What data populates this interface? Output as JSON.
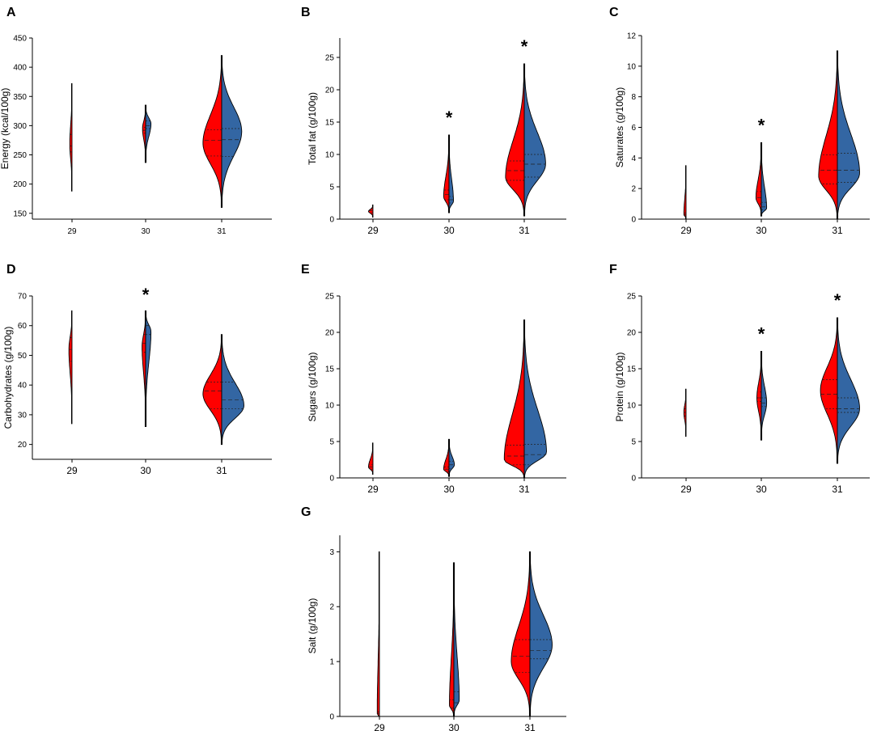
{
  "figure": {
    "colors": {
      "group_a": "#ff0000",
      "group_b": "#3366a3",
      "outline": "#000000"
    },
    "note": ""
  },
  "chart_data": [
    {
      "panel": "A",
      "type": "violin",
      "title": "",
      "xlabel": "",
      "ylabel": "Energy (kcal/100g)",
      "categories": [
        "29",
        "30",
        "31"
      ],
      "ylim": [
        140,
        450
      ],
      "yticks": [
        150,
        200,
        250,
        300,
        350,
        400,
        450
      ],
      "significant": [],
      "series": [
        {
          "name": "left (red)",
          "side": "left",
          "values": [
            {
              "median": 265,
              "q1": 255,
              "q3": 285,
              "min": 188,
              "max": 372,
              "peak": 268,
              "width": 0.05
            },
            {
              "median": 292,
              "q1": 287,
              "q3": 297,
              "min": 237,
              "max": 335,
              "peak": 295,
              "width": 0.07
            },
            {
              "median": 275,
              "q1": 248,
              "q3": 293,
              "min": 160,
              "max": 420,
              "peak": 270,
              "width": 0.42
            }
          ]
        },
        {
          "name": "right (blue)",
          "side": "right",
          "values": [
            {
              "median": 0,
              "q1": 0,
              "q3": 0,
              "min": 0,
              "max": 0,
              "peak": 0,
              "width": 0
            },
            {
              "median": 300,
              "q1": 295,
              "q3": 308,
              "min": 237,
              "max": 335,
              "peak": 303,
              "width": 0.12
            },
            {
              "median": 276,
              "q1": 247,
              "q3": 295,
              "min": 160,
              "max": 420,
              "peak": 290,
              "width": 0.45
            }
          ]
        }
      ]
    },
    {
      "panel": "B",
      "type": "violin",
      "title": "",
      "xlabel": "",
      "ylabel": "Total fat (g/100g)",
      "categories": [
        "29",
        "30",
        "31"
      ],
      "ylim": [
        0,
        28
      ],
      "yticks": [
        0,
        5,
        10,
        15,
        20,
        25
      ],
      "significant": [
        "30",
        "31"
      ],
      "series": [
        {
          "name": "left (red)",
          "side": "left",
          "values": [
            {
              "median": 1.3,
              "q1": 1.0,
              "q3": 1.6,
              "min": 0.3,
              "max": 2.2,
              "peak": 1.2,
              "width": 0.1
            },
            {
              "median": 3.8,
              "q1": 3.0,
              "q3": 4.5,
              "min": 1.0,
              "max": 13,
              "peak": 3.5,
              "width": 0.12
            },
            {
              "median": 7.5,
              "q1": 6.0,
              "q3": 9.0,
              "min": 0.5,
              "max": 24,
              "peak": 6.5,
              "width": 0.42
            }
          ]
        },
        {
          "name": "right (blue)",
          "side": "right",
          "values": [
            {
              "median": 0,
              "q1": 0,
              "q3": 0,
              "min": 0,
              "max": 0,
              "peak": 0,
              "width": 0
            },
            {
              "median": 3.0,
              "q1": 2.5,
              "q3": 3.5,
              "min": 1.0,
              "max": 13,
              "peak": 2.8,
              "width": 0.1
            },
            {
              "median": 8.5,
              "q1": 6.5,
              "q3": 10.0,
              "min": 0.5,
              "max": 24,
              "peak": 8.5,
              "width": 0.48
            }
          ]
        }
      ]
    },
    {
      "panel": "C",
      "type": "violin",
      "title": "",
      "xlabel": "",
      "ylabel": "Saturates (g/100g)",
      "categories": [
        "29",
        "30",
        "31"
      ],
      "ylim": [
        0,
        12
      ],
      "yticks": [
        0,
        2,
        4,
        6,
        8,
        10,
        12
      ],
      "significant": [
        "30"
      ],
      "series": [
        {
          "name": "left (red)",
          "side": "left",
          "values": [
            {
              "median": 0.3,
              "q1": 0.2,
              "q3": 0.4,
              "min": 0.0,
              "max": 3.5,
              "peak": 0.3,
              "width": 0.05
            },
            {
              "median": 1.4,
              "q1": 1.0,
              "q3": 1.8,
              "min": 0.2,
              "max": 5.0,
              "peak": 1.4,
              "width": 0.12
            },
            {
              "median": 3.2,
              "q1": 2.3,
              "q3": 4.2,
              "min": 0.0,
              "max": 11,
              "peak": 2.8,
              "width": 0.42
            }
          ]
        },
        {
          "name": "right (blue)",
          "side": "right",
          "values": [
            {
              "median": 0,
              "q1": 0,
              "q3": 0,
              "min": 0,
              "max": 0,
              "peak": 0,
              "width": 0
            },
            {
              "median": 0.8,
              "q1": 0.6,
              "q3": 1.1,
              "min": 0.2,
              "max": 5.0,
              "peak": 0.7,
              "width": 0.12
            },
            {
              "median": 3.2,
              "q1": 2.4,
              "q3": 4.3,
              "min": 0.0,
              "max": 11,
              "peak": 3.0,
              "width": 0.5
            }
          ]
        }
      ]
    },
    {
      "panel": "D",
      "type": "violin",
      "title": "",
      "xlabel": "",
      "ylabel": "Carbohydrates (g/100g)",
      "categories": [
        "29",
        "30",
        "31"
      ],
      "ylim": [
        15,
        70
      ],
      "yticks": [
        20,
        30,
        40,
        50,
        60,
        70
      ],
      "significant": [
        "30"
      ],
      "series": [
        {
          "name": "left (red)",
          "side": "left",
          "values": [
            {
              "median": 52,
              "q1": 48,
              "q3": 56,
              "min": 27,
              "max": 65,
              "peak": 52,
              "width": 0.07
            },
            {
              "median": 54,
              "q1": 51,
              "q3": 57,
              "min": 26,
              "max": 65,
              "peak": 53,
              "width": 0.08
            },
            {
              "median": 38,
              "q1": 32,
              "q3": 41,
              "min": 20,
              "max": 57,
              "peak": 37,
              "width": 0.42
            }
          ]
        },
        {
          "name": "right (blue)",
          "side": "right",
          "values": [
            {
              "median": 0,
              "q1": 0,
              "q3": 0,
              "min": 0,
              "max": 0,
              "peak": 0,
              "width": 0
            },
            {
              "median": 60,
              "q1": 57,
              "q3": 62,
              "min": 26,
              "max": 65,
              "peak": 58,
              "width": 0.12
            },
            {
              "median": 35,
              "q1": 32,
              "q3": 41,
              "min": 20,
              "max": 57,
              "peak": 33,
              "width": 0.5
            }
          ]
        }
      ]
    },
    {
      "panel": "E",
      "type": "violin",
      "title": "",
      "xlabel": "",
      "ylabel": "Sugars (g/100g)",
      "categories": [
        "29",
        "30",
        "31"
      ],
      "ylim": [
        0,
        25
      ],
      "yticks": [
        0,
        5,
        10,
        15,
        20,
        25
      ],
      "significant": [],
      "series": [
        {
          "name": "left (red)",
          "side": "left",
          "values": [
            {
              "median": 1.5,
              "q1": 1.2,
              "q3": 1.8,
              "min": 0.5,
              "max": 4.8,
              "peak": 1.5,
              "width": 0.1
            },
            {
              "median": 1.2,
              "q1": 0.9,
              "q3": 1.5,
              "min": 0.2,
              "max": 5.3,
              "peak": 1.2,
              "width": 0.12
            },
            {
              "median": 3.0,
              "q1": 1.8,
              "q3": 4.5,
              "min": 0.0,
              "max": 21.7,
              "peak": 2.5,
              "width": 0.45
            }
          ]
        },
        {
          "name": "right (blue)",
          "side": "right",
          "values": [
            {
              "median": 0,
              "q1": 0,
              "q3": 0,
              "min": 0,
              "max": 0,
              "peak": 0,
              "width": 0
            },
            {
              "median": 1.8,
              "q1": 1.3,
              "q3": 2.3,
              "min": 0.2,
              "max": 5.3,
              "peak": 1.8,
              "width": 0.12
            },
            {
              "median": 3.2,
              "q1": 1.8,
              "q3": 4.6,
              "min": 0.0,
              "max": 21.7,
              "peak": 3.5,
              "width": 0.5
            }
          ]
        }
      ]
    },
    {
      "panel": "F",
      "type": "violin",
      "title": "",
      "xlabel": "",
      "ylabel": "Protein (g/100g)",
      "categories": [
        "29",
        "30",
        "31"
      ],
      "ylim": [
        0,
        25
      ],
      "yticks": [
        0,
        5,
        10,
        15,
        20,
        25
      ],
      "significant": [
        "30",
        "31"
      ],
      "series": [
        {
          "name": "left (red)",
          "side": "left",
          "values": [
            {
              "median": 9.0,
              "q1": 8.5,
              "q3": 9.5,
              "min": 5.7,
              "max": 12.2,
              "peak": 9.0,
              "width": 0.05
            },
            {
              "median": 11.0,
              "q1": 10.5,
              "q3": 11.8,
              "min": 5.2,
              "max": 17.4,
              "peak": 11.0,
              "width": 0.1
            },
            {
              "median": 11.5,
              "q1": 9.5,
              "q3": 13.5,
              "min": 2.0,
              "max": 22.0,
              "peak": 12.0,
              "width": 0.38
            }
          ]
        },
        {
          "name": "right (blue)",
          "side": "right",
          "values": [
            {
              "median": 0,
              "q1": 0,
              "q3": 0,
              "min": 0,
              "max": 0,
              "peak": 0,
              "width": 0
            },
            {
              "median": 10.3,
              "q1": 9.8,
              "q3": 11.0,
              "min": 5.2,
              "max": 17.4,
              "peak": 10.3,
              "width": 0.12
            },
            {
              "median": 9.5,
              "q1": 9.0,
              "q3": 11.0,
              "min": 2.0,
              "max": 22.0,
              "peak": 9.5,
              "width": 0.5
            }
          ]
        }
      ]
    },
    {
      "panel": "G",
      "type": "violin",
      "title": "",
      "xlabel": "",
      "ylabel": "Salt (g/100g)",
      "categories": [
        "29",
        "30",
        "31"
      ],
      "ylim": [
        0,
        3.3
      ],
      "yticks": [
        0,
        1,
        2,
        3
      ],
      "significant": [],
      "series": [
        {
          "name": "left (red)",
          "side": "left",
          "values": [
            {
              "median": 0.05,
              "q1": 0.02,
              "q3": 0.08,
              "min": 0.0,
              "max": 3.0,
              "peak": 0.05,
              "width": 0.05
            },
            {
              "median": 0.15,
              "q1": 0.05,
              "q3": 0.3,
              "min": 0.0,
              "max": 2.8,
              "peak": 0.2,
              "width": 0.1
            },
            {
              "median": 1.1,
              "q1": 0.8,
              "q3": 1.4,
              "min": 0.0,
              "max": 3.0,
              "peak": 1.0,
              "width": 0.42
            }
          ]
        },
        {
          "name": "right (blue)",
          "side": "right",
          "values": [
            {
              "median": 0,
              "q1": 0,
              "q3": 0,
              "min": 0,
              "max": 0,
              "peak": 0,
              "width": 0
            },
            {
              "median": 0.25,
              "q1": 0.1,
              "q3": 0.45,
              "min": 0.0,
              "max": 2.8,
              "peak": 0.3,
              "width": 0.12
            },
            {
              "median": 1.2,
              "q1": 1.05,
              "q3": 1.4,
              "min": 0.0,
              "max": 3.0,
              "peak": 1.3,
              "width": 0.5
            }
          ]
        }
      ]
    }
  ]
}
